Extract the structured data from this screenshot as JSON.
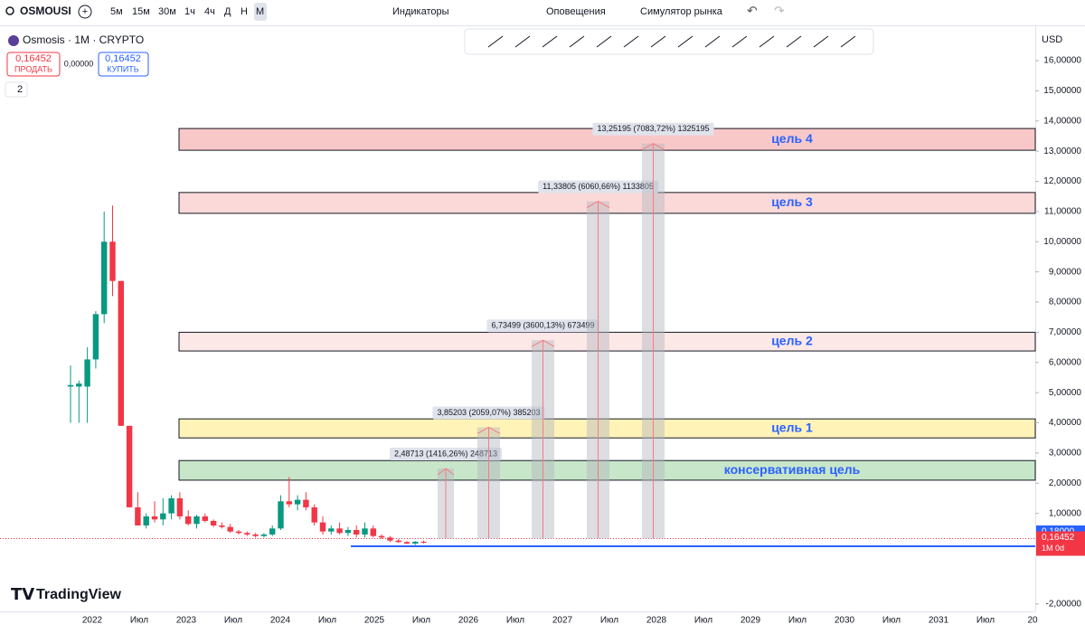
{
  "toolbar": {
    "symbol": "OSMOUSI",
    "intervals": [
      "5м",
      "15м",
      "30м",
      "1ч",
      "4ч",
      "Д",
      "Н",
      "М"
    ],
    "indicators": "Индикаторы",
    "alerts": "Оповещения",
    "replay": "Симулятор рынка"
  },
  "legend": {
    "title": "Osmosis · 1M · CRYPTO",
    "sell_price": "0,16452",
    "sell": "ПРОДАТЬ",
    "spread": "0,00000",
    "buy_price": "0,16452",
    "buy": "КУПИТЬ",
    "indicators_count": "2"
  },
  "chart": {
    "currency": "USD",
    "yticks": [
      {
        "value": 16,
        "label": "16,00000"
      },
      {
        "value": 15,
        "label": "15,00000"
      },
      {
        "value": 14,
        "label": "14,00000"
      },
      {
        "value": 13,
        "label": "13,00000"
      },
      {
        "value": 12,
        "label": "12,00000"
      },
      {
        "value": 11,
        "label": "11,00000"
      },
      {
        "value": 10,
        "label": "10,00000"
      },
      {
        "value": 9,
        "label": "9,00000"
      },
      {
        "value": 8,
        "label": "8,00000"
      },
      {
        "value": 7,
        "label": "7,00000"
      },
      {
        "value": 6,
        "label": "6,00000"
      },
      {
        "value": 5,
        "label": "5,00000"
      },
      {
        "value": 4,
        "label": "4,00000"
      },
      {
        "value": 3,
        "label": "3,00000"
      },
      {
        "value": 2,
        "label": "2,00000"
      },
      {
        "value": 1,
        "label": "1,00000"
      },
      {
        "value": -2,
        "label": "-2,00000"
      }
    ],
    "xlabels": [
      "2022",
      "Июл",
      "2023",
      "Июл",
      "2024",
      "Июл",
      "2025",
      "Июл",
      "2026",
      "Июл",
      "2027",
      "Июл",
      "2028",
      "Июл",
      "2029",
      "Июл",
      "2030",
      "Июл",
      "2031",
      "Июл",
      "20"
    ],
    "candles": [
      [
        5.2,
        5.9,
        4.0,
        5.25
      ],
      [
        5.2,
        5.4,
        4.0,
        5.3
      ],
      [
        5.2,
        6.5,
        4.0,
        6.1
      ],
      [
        6.1,
        7.7,
        5.8,
        7.6
      ],
      [
        7.6,
        11.0,
        7.3,
        10.0
      ],
      [
        10.0,
        11.2,
        8.2,
        8.7
      ],
      [
        8.7,
        8.7,
        3.9,
        3.9
      ],
      [
        3.9,
        3.9,
        1.2,
        1.2
      ],
      [
        1.2,
        1.7,
        0.6,
        0.6
      ],
      [
        0.6,
        1.0,
        0.5,
        0.9
      ],
      [
        0.9,
        1.4,
        0.7,
        0.8
      ],
      [
        0.8,
        1.5,
        0.6,
        1.0
      ],
      [
        1.0,
        1.6,
        0.8,
        1.5
      ],
      [
        1.5,
        1.7,
        0.8,
        0.9
      ],
      [
        0.9,
        1.1,
        0.6,
        0.65
      ],
      [
        0.65,
        0.95,
        0.5,
        0.9
      ],
      [
        0.9,
        1.0,
        0.7,
        0.75
      ],
      [
        0.75,
        0.8,
        0.55,
        0.6
      ],
      [
        0.6,
        0.7,
        0.5,
        0.55
      ],
      [
        0.55,
        0.65,
        0.35,
        0.4
      ],
      [
        0.4,
        0.45,
        0.3,
        0.35
      ],
      [
        0.35,
        0.4,
        0.25,
        0.3
      ],
      [
        0.3,
        0.35,
        0.2,
        0.25
      ],
      [
        0.25,
        0.35,
        0.2,
        0.3
      ],
      [
        0.3,
        0.6,
        0.25,
        0.5
      ],
      [
        0.5,
        1.6,
        0.45,
        1.4
      ],
      [
        1.4,
        2.2,
        1.2,
        1.3
      ],
      [
        1.3,
        1.6,
        1.1,
        1.45
      ],
      [
        1.45,
        1.7,
        1.1,
        1.2
      ],
      [
        1.2,
        1.3,
        0.6,
        0.7
      ],
      [
        0.7,
        0.9,
        0.3,
        0.4
      ],
      [
        0.4,
        0.6,
        0.3,
        0.5
      ],
      [
        0.5,
        0.7,
        0.3,
        0.35
      ],
      [
        0.35,
        0.55,
        0.25,
        0.45
      ],
      [
        0.45,
        0.6,
        0.2,
        0.3
      ],
      [
        0.3,
        0.7,
        0.2,
        0.5
      ],
      [
        0.5,
        0.6,
        0.2,
        0.25
      ],
      [
        0.25,
        0.3,
        0.15,
        0.2
      ],
      [
        0.2,
        0.25,
        0.05,
        0.1
      ],
      [
        0.1,
        0.15,
        0.02,
        0.05
      ],
      [
        0.05,
        0.08,
        -0.02,
        0.0
      ],
      [
        0.0,
        0.08,
        -0.05,
        0.06
      ],
      [
        0.06,
        0.1,
        0.0,
        0.05
      ]
    ],
    "zones": [
      {
        "label": "консервативная цель",
        "low": 2.1,
        "high": 2.75,
        "fill": "#c8e6c9"
      },
      {
        "label": "цель 1",
        "low": 3.5,
        "high": 4.13,
        "fill": "#fff3b8"
      },
      {
        "label": "цель 2",
        "low": 6.38,
        "high": 7.0,
        "fill": "#fde8e8"
      },
      {
        "label": "цель 3",
        "low": 10.94,
        "high": 11.63,
        "fill": "#fcd9d9"
      },
      {
        "label": "цель 4",
        "low": 13.03,
        "high": 13.75,
        "fill": "#f8c8c8"
      }
    ],
    "targets": [
      {
        "label": "2,48713 (1416,26%) 248713",
        "value": 2.48713
      },
      {
        "label": "3,85203 (2059,07%) 385203",
        "value": 3.85203
      },
      {
        "label": "6,73499 (3600,13%) 673499",
        "value": 6.73499
      },
      {
        "label": "11,33805 (6060,66%) 1133805",
        "value": 11.33805
      },
      {
        "label": "13,25195 (7083,72%) 1325195",
        "value": 13.25195
      }
    ],
    "alert_price": {
      "value": 0.18,
      "label": "0,18000"
    },
    "last_price": {
      "value": 0.16452,
      "label": "0,16452",
      "countdown": "1М 0d"
    }
  },
  "logo": "TradingView"
}
